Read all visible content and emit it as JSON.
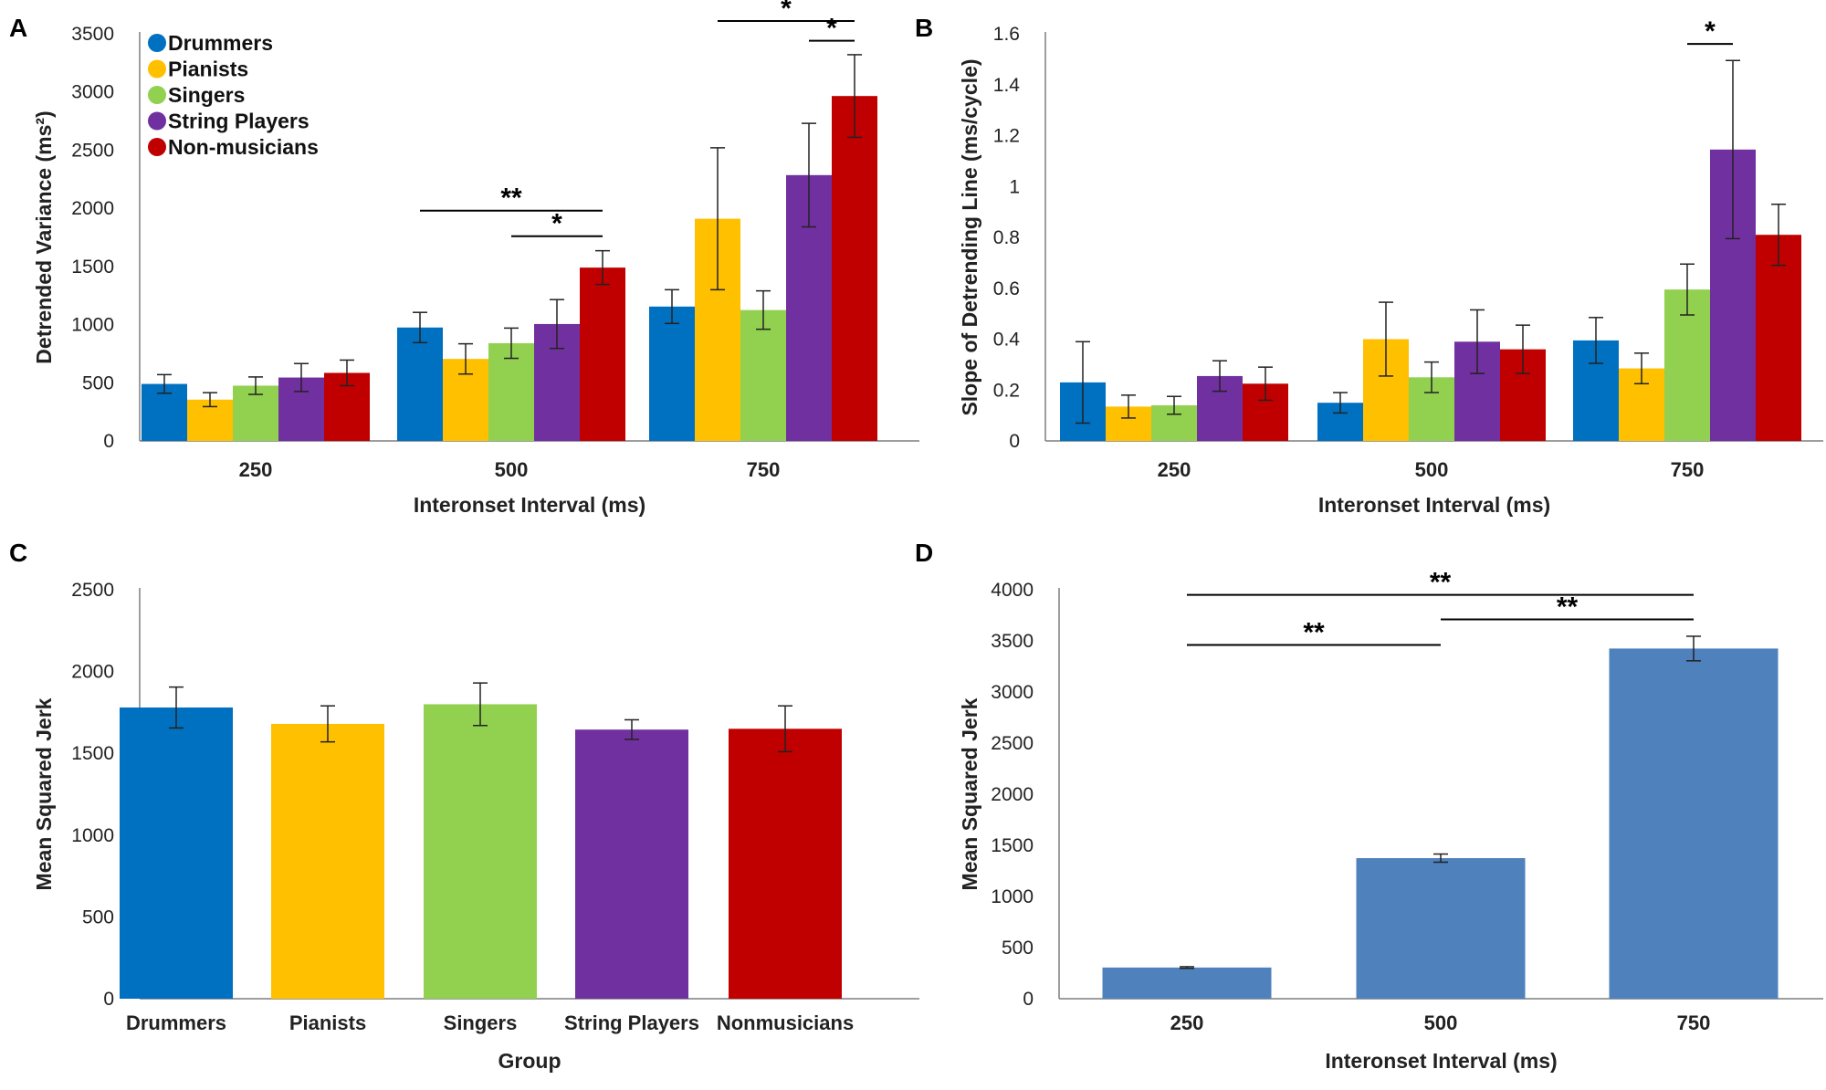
{
  "chart_data": [
    {
      "panel": "A",
      "type": "bar",
      "title": "",
      "xlabel": "Interonset Interval (ms)",
      "ylabel": "Detrended Variance (ms²)",
      "ylim": [
        0,
        3500
      ],
      "yticks": [
        0,
        500,
        1000,
        1500,
        2000,
        2500,
        3000,
        3500
      ],
      "grid": false,
      "legend": "top-left",
      "categories": [
        "250",
        "500",
        "750"
      ],
      "series": [
        {
          "name": "Drummers",
          "color": "#0070C0",
          "values": [
            490,
            975,
            1155
          ],
          "errors": [
            80,
            130,
            145
          ]
        },
        {
          "name": "Pianists",
          "color": "#FFC000",
          "values": [
            355,
            705,
            1910
          ],
          "errors": [
            60,
            130,
            610
          ]
        },
        {
          "name": "Singers",
          "color": "#92D050",
          "values": [
            475,
            840,
            1125
          ],
          "errors": [
            75,
            130,
            165
          ]
        },
        {
          "name": "String Players",
          "color": "#7030A0",
          "values": [
            545,
            1005,
            2285
          ],
          "errors": [
            120,
            210,
            445
          ]
        },
        {
          "name": "Non-musicians",
          "color": "#C00000",
          "values": [
            585,
            1490,
            2965
          ],
          "errors": [
            110,
            145,
            355
          ]
        }
      ],
      "significance": [
        {
          "category": "500",
          "from": "Drummers",
          "to": "Non-musicians",
          "label": "**",
          "y": 1980
        },
        {
          "category": "500",
          "from": "Singers",
          "to": "Non-musicians",
          "label": "*",
          "y": 1760
        },
        {
          "category": "750",
          "from": "Pianists",
          "to": "Non-musicians",
          "label": "*",
          "y": 3610
        },
        {
          "category": "750",
          "from": "String Players",
          "to": "Non-musicians",
          "label": "*",
          "y": 3440
        }
      ]
    },
    {
      "panel": "B",
      "type": "bar",
      "title": "",
      "xlabel": "Interonset Interval (ms)",
      "ylabel": "Slope of Detrending Line (ms/cycle)",
      "ylim": [
        0,
        1.6
      ],
      "yticks": [
        "0",
        "0.2",
        "0.4",
        "0.6",
        "0.8",
        "1",
        "1.2",
        "1.4",
        "1.6"
      ],
      "grid": false,
      "categories": [
        "250",
        "500",
        "750"
      ],
      "series": [
        {
          "name": "Drummers",
          "color": "#0070C0",
          "values": [
            0.23,
            0.15,
            0.395
          ],
          "errors": [
            0.16,
            0.04,
            0.09
          ]
        },
        {
          "name": "Pianists",
          "color": "#FFC000",
          "values": [
            0.135,
            0.4,
            0.285
          ],
          "errors": [
            0.045,
            0.145,
            0.06
          ]
        },
        {
          "name": "Singers",
          "color": "#92D050",
          "values": [
            0.14,
            0.25,
            0.595
          ],
          "errors": [
            0.035,
            0.06,
            0.1
          ]
        },
        {
          "name": "String Players",
          "color": "#7030A0",
          "values": [
            0.255,
            0.39,
            1.145
          ],
          "errors": [
            0.06,
            0.125,
            0.35
          ]
        },
        {
          "name": "Non-musicians",
          "color": "#C00000",
          "values": [
            0.225,
            0.36,
            0.81
          ],
          "errors": [
            0.065,
            0.095,
            0.12
          ]
        }
      ],
      "significance": [
        {
          "category": "750",
          "from": "Singers",
          "to": "String Players",
          "label": "*",
          "y": 1.56
        }
      ]
    },
    {
      "panel": "C",
      "type": "bar",
      "title": "",
      "xlabel": "Group",
      "ylabel": "Mean Squared Jerk",
      "ylim": [
        0,
        2500
      ],
      "yticks": [
        0,
        500,
        1000,
        1500,
        2000,
        2500
      ],
      "grid": false,
      "categories": [
        "Drummers",
        "Pianists",
        "Singers",
        "String Players",
        "Nonmusicians"
      ],
      "series": [
        {
          "name": "Mean Squared Jerk",
          "colors": [
            "#0070C0",
            "#FFC000",
            "#92D050",
            "#7030A0",
            "#C00000"
          ],
          "values": [
            1780,
            1680,
            1800,
            1645,
            1650
          ],
          "errors": [
            125,
            110,
            130,
            60,
            140
          ]
        }
      ]
    },
    {
      "panel": "D",
      "type": "bar",
      "title": "",
      "xlabel": "Interonset Interval (ms)",
      "ylabel": "Mean Squared Jerk",
      "ylim": [
        0,
        4000
      ],
      "yticks": [
        0,
        500,
        1000,
        1500,
        2000,
        2500,
        3000,
        3500,
        4000
      ],
      "grid": false,
      "categories": [
        "250",
        "500",
        "750"
      ],
      "series": [
        {
          "name": "Mean Squared Jerk",
          "color": "#4F81BD",
          "values": [
            305,
            1375,
            3425
          ],
          "errors": [
            8,
            40,
            120
          ]
        }
      ],
      "significance": [
        {
          "from": "250",
          "to": "750",
          "label": "**",
          "y": 3950
        },
        {
          "from": "500",
          "to": "750",
          "label": "**",
          "y": 3710
        },
        {
          "from": "250",
          "to": "500",
          "label": "**",
          "y": 3460
        }
      ]
    }
  ]
}
